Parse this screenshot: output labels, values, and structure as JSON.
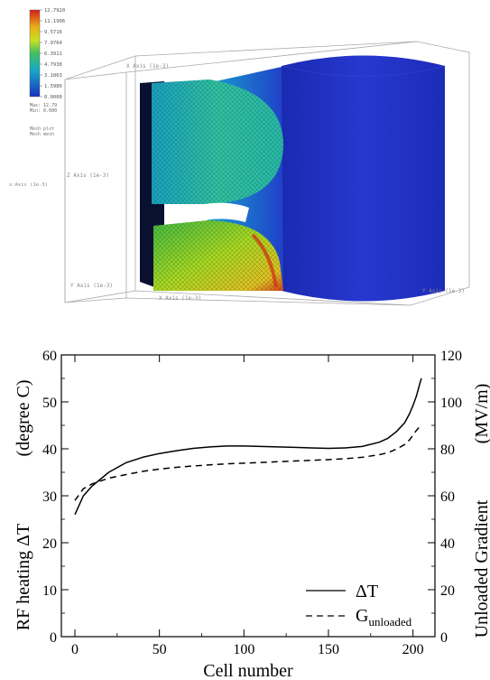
{
  "simulation_panel": {
    "colorbar_ticks": [
      "12.7920",
      "11.1906",
      "9.5716",
      "7.9764",
      "6.3911",
      "4.7938",
      "3.1863",
      "1.5980",
      "0.0000"
    ],
    "stats": [
      "Max: 12.79",
      "Min: 0.000"
    ],
    "mesh_labels": [
      "Mesh plot",
      "Mesh mesh"
    ],
    "axis_labels": {
      "x_top": "X Axis (1e-3)",
      "z": "Z Axis (1e-3)",
      "x_bottom": "X Axis (1e-3)",
      "right": "Y Axis (1e-3)",
      "bottom_left": "Y Axis (1e-3)",
      "left_small": "x:Axis (1e-3)"
    },
    "colors": {
      "high": "#d42018",
      "upper": "#e8d020",
      "mid": "#38c070",
      "low": "#18a0d0",
      "lowest": "#2038c8"
    }
  },
  "chart_data": {
    "type": "line",
    "x": [
      0,
      5,
      10,
      20,
      30,
      40,
      50,
      60,
      70,
      80,
      90,
      100,
      110,
      120,
      130,
      140,
      150,
      160,
      170,
      180,
      185,
      190,
      195,
      198,
      200,
      202,
      204,
      205
    ],
    "series": [
      {
        "name": "ΔT",
        "axis": "left",
        "style": "solid",
        "values": [
          26,
          30,
          32,
          35,
          37,
          38.2,
          39,
          39.6,
          40.1,
          40.4,
          40.6,
          40.6,
          40.5,
          40.4,
          40.3,
          40.2,
          40.1,
          40.2,
          40.5,
          41.4,
          42.2,
          43.6,
          45.5,
          47.5,
          49.2,
          51.2,
          53.8,
          55
        ]
      },
      {
        "name": "G",
        "name_subscript": "unloaded",
        "axis": "right",
        "style": "dashed",
        "values": [
          58,
          63,
          65,
          67.5,
          69,
          70.4,
          71.4,
          72.1,
          72.7,
          73.2,
          73.6,
          73.9,
          74.2,
          74.5,
          74.8,
          75.1,
          75.4,
          75.8,
          76.4,
          77.5,
          78.3,
          79.8,
          81.8,
          83.8,
          85.8,
          87.8,
          89.5,
          90.5
        ]
      }
    ],
    "xlabel": "Cell number",
    "ylabel_left_main": "RF heating ΔT",
    "ylabel_left_unit": "(degree C)",
    "ylabel_right_main": "Unloaded Gradient",
    "ylabel_right_unit": "(MV/m)",
    "xlim": [
      -8,
      213
    ],
    "ylim_left": [
      0,
      60
    ],
    "ylim_right": [
      0,
      120
    ],
    "x_ticks": [
      "0",
      "50",
      "100",
      "150",
      "200"
    ],
    "y_left_ticks": [
      "0",
      "10",
      "20",
      "30",
      "40",
      "50",
      "60"
    ],
    "y_right_ticks": [
      "0",
      "20",
      "40",
      "60",
      "80",
      "100",
      "120"
    ],
    "legend_position": "bottom-right",
    "grid": false
  }
}
